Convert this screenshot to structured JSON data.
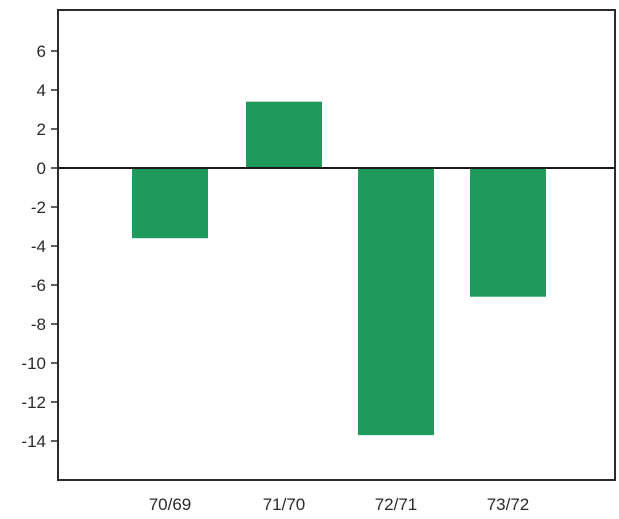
{
  "chart_data": {
    "type": "bar",
    "title": "",
    "xlabel": "",
    "ylabel": "",
    "categories": [
      "70/69",
      "71/70",
      "72/71",
      "73/72"
    ],
    "values": [
      -3.6,
      3.4,
      -13.7,
      -6.6
    ],
    "ylim": [
      -16,
      8
    ],
    "yticks": [
      6,
      4,
      2,
      0,
      -2,
      -4,
      -6,
      -8,
      -10,
      -12,
      -14
    ],
    "ytick_labels": [
      "6",
      "4",
      "2",
      "0",
      "-2",
      "-4",
      "-6",
      "-8",
      "-10",
      "-12",
      "-14"
    ],
    "grid": false,
    "legend": "none",
    "bar_color": "#1f9a5c",
    "axis_color": "#2b2b2b"
  }
}
